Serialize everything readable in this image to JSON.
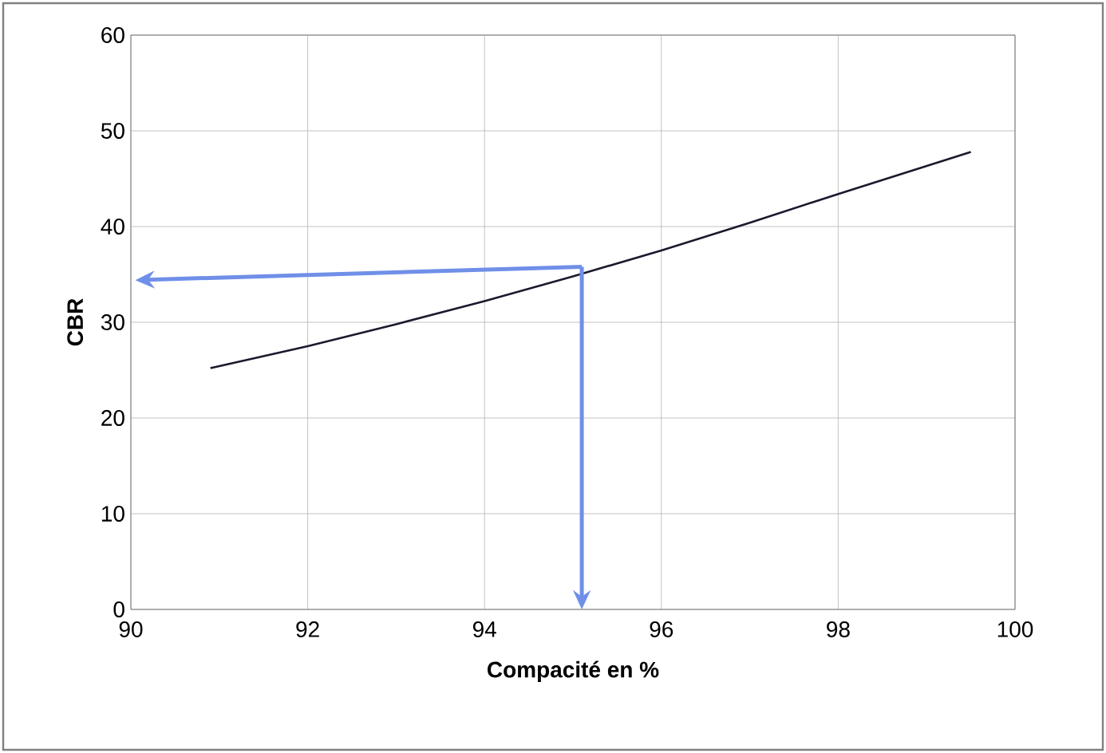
{
  "chart_data": {
    "type": "line",
    "xlabel": "Compacité en %",
    "ylabel": "CBR",
    "x": [
      90.9,
      92,
      93,
      94,
      95,
      96,
      97,
      98,
      99.5
    ],
    "series": [
      {
        "color": "#1a1a2e",
        "values": [
          25.2,
          27.5,
          29.8,
          32.2,
          34.8,
          37.5,
          40.4,
          43.4,
          47.8
        ]
      }
    ],
    "xlim": [
      90,
      100
    ],
    "xticks": [
      90,
      92,
      94,
      96,
      98,
      100
    ],
    "ylim": [
      0,
      60
    ],
    "yticks": [
      0,
      10,
      20,
      30,
      40,
      50,
      60
    ],
    "grid": true,
    "marker": "none",
    "line_style": "solid"
  }
}
